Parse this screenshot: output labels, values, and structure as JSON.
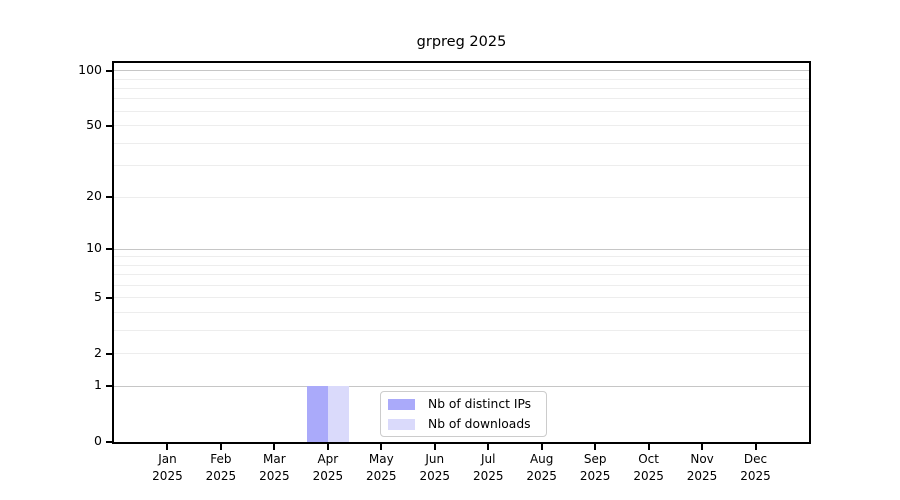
{
  "figure": {
    "title": "grpreg 2025",
    "background": "#ffffff"
  },
  "chart_data": {
    "type": "bar",
    "title": "grpreg 2025",
    "scale": "log1p (symlog-like, 0 at baseline)",
    "categories": [
      "Jan",
      "Feb",
      "Mar",
      "Apr",
      "May",
      "Jun",
      "Jul",
      "Aug",
      "Sep",
      "Oct",
      "Nov",
      "Dec"
    ],
    "year": "2025",
    "series": [
      {
        "name": "Nb of distinct IPs",
        "color": "#aaaafa",
        "values": [
          0,
          0,
          0,
          1,
          0,
          0,
          0,
          0,
          0,
          0,
          0,
          0
        ]
      },
      {
        "name": "Nb of downloads",
        "color": "#dadafb",
        "values": [
          0,
          0,
          0,
          1,
          0,
          0,
          0,
          0,
          0,
          0,
          0,
          0
        ]
      }
    ],
    "xlabel": "",
    "ylabel": "",
    "ylim": [
      0,
      110
    ],
    "yticks": [
      0,
      1,
      2,
      5,
      10,
      20,
      50,
      100
    ],
    "ytick_labels": [
      "0",
      "1",
      "2",
      "5",
      "10",
      "20",
      "50",
      "100"
    ],
    "major_gridlines": [
      1,
      10,
      100
    ],
    "minor_gridlines": [
      2,
      3,
      4,
      5,
      6,
      7,
      8,
      9,
      20,
      30,
      40,
      50,
      60,
      70,
      80,
      90
    ],
    "grid": true,
    "legend_position": "lower center, inside axes"
  },
  "legend": {
    "entries": [
      {
        "label": "Nb of distinct IPs",
        "color": "#aaaafa"
      },
      {
        "label": "Nb of downloads",
        "color": "#dadafb"
      }
    ]
  },
  "colors": {
    "bar_distinct_ips": "#aaaafa",
    "bar_downloads": "#dadafb",
    "major_gridline": "#c6c6c6",
    "minor_gridline": "#ededed",
    "spine": "#000000",
    "tick_label": "#000000",
    "legend_border": "#cccccc"
  }
}
